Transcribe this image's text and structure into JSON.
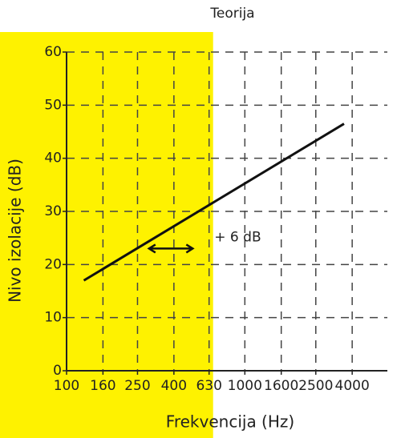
{
  "chart_data": {
    "type": "line",
    "title": "Teorija",
    "xlabel": "Frekvencija (Hz)",
    "ylabel": "Nivo izolacije (dB)",
    "log_x": true,
    "xlim": [
      100,
      6300
    ],
    "xticks": [
      100,
      160,
      250,
      400,
      630,
      1000,
      1600,
      2500,
      4000
    ],
    "ylim": [
      0,
      60
    ],
    "yticks": [
      0,
      10,
      20,
      30,
      40,
      50,
      60
    ],
    "grid": true,
    "highlight": {
      "x_max": 630,
      "color": "#fef200"
    },
    "series": [
      {
        "color": "#111111",
        "x": [
          125,
          3600
        ],
        "values": [
          17,
          46.5
        ]
      }
    ],
    "annotation": {
      "text": "+ 6 dB",
      "x": [
        290,
        510
      ],
      "y": 23
    }
  }
}
